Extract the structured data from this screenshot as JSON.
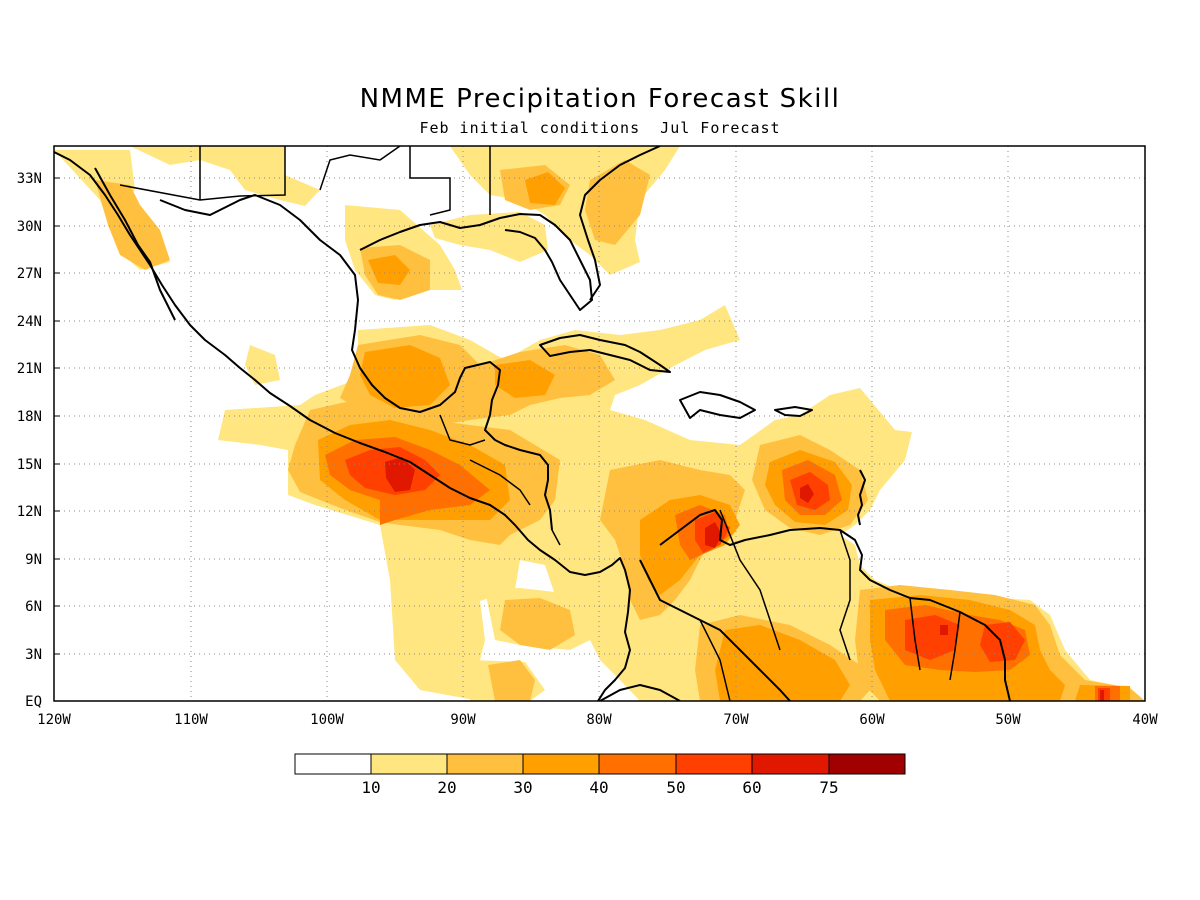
{
  "title": "NMME Precipitation Forecast Skill",
  "subtitle": "Feb initial conditions  Jul Forecast",
  "colors": {
    "c10": "#ffe680",
    "c20": "#ffc040",
    "c30": "#ffa000",
    "c40": "#ff7000",
    "c50": "#ff4000",
    "c60": "#e01800",
    "c75": "#a00000"
  },
  "legend": {
    "labels": [
      "10",
      "20",
      "30",
      "40",
      "50",
      "60",
      "75"
    ],
    "colors": [
      "#ffffff",
      "#ffe680",
      "#ffc040",
      "#ffa000",
      "#ff7000",
      "#ff4000",
      "#e01800",
      "#a00000"
    ]
  },
  "map": {
    "lon_range": [
      -120,
      -40
    ],
    "lat_range": [
      0,
      35
    ],
    "x_tick_labels": [
      "120W",
      "110W",
      "100W",
      "90W",
      "80W",
      "70W",
      "60W",
      "50W",
      "40W"
    ],
    "y_tick_labels": [
      "EQ",
      "3N",
      "6N",
      "9N",
      "12N",
      "15N",
      "18N",
      "21N",
      "24N",
      "27N",
      "30N",
      "33N"
    ]
  }
}
